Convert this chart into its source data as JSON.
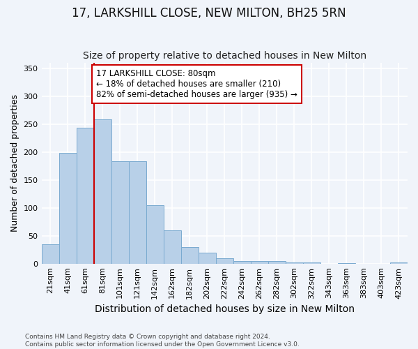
{
  "title": "17, LARKSHILL CLOSE, NEW MILTON, BH25 5RN",
  "subtitle": "Size of property relative to detached houses in New Milton",
  "xlabel": "Distribution of detached houses by size in New Milton",
  "ylabel": "Number of detached properties",
  "categories": [
    "21sqm",
    "41sqm",
    "61sqm",
    "81sqm",
    "101sqm",
    "121sqm",
    "142sqm",
    "162sqm",
    "182sqm",
    "202sqm",
    "222sqm",
    "242sqm",
    "262sqm",
    "282sqm",
    "302sqm",
    "322sqm",
    "343sqm",
    "363sqm",
    "383sqm",
    "403sqm",
    "423sqm"
  ],
  "values": [
    35,
    198,
    243,
    258,
    183,
    183,
    105,
    60,
    30,
    20,
    10,
    5,
    5,
    5,
    2,
    2,
    0,
    1,
    0,
    0,
    2
  ],
  "bar_color": "#b8d0e8",
  "bar_edge_color": "#7aaad0",
  "vline_color": "#cc0000",
  "vline_x_index": 3,
  "annotation_text": "17 LARKSHILL CLOSE: 80sqm\n← 18% of detached houses are smaller (210)\n82% of semi-detached houses are larger (935) →",
  "annotation_box_color": "white",
  "annotation_box_edge": "#cc0000",
  "ylim": [
    0,
    360
  ],
  "yticks": [
    0,
    50,
    100,
    150,
    200,
    250,
    300,
    350
  ],
  "bg_color": "#f0f4fa",
  "plot_bg_color": "#f0f4fa",
  "grid_color": "#ffffff",
  "footer": "Contains HM Land Registry data © Crown copyright and database right 2024.\nContains public sector information licensed under the Open Government Licence v3.0.",
  "title_fontsize": 12,
  "subtitle_fontsize": 10,
  "xlabel_fontsize": 10,
  "ylabel_fontsize": 9,
  "tick_fontsize": 8,
  "annotation_fontsize": 8.5
}
